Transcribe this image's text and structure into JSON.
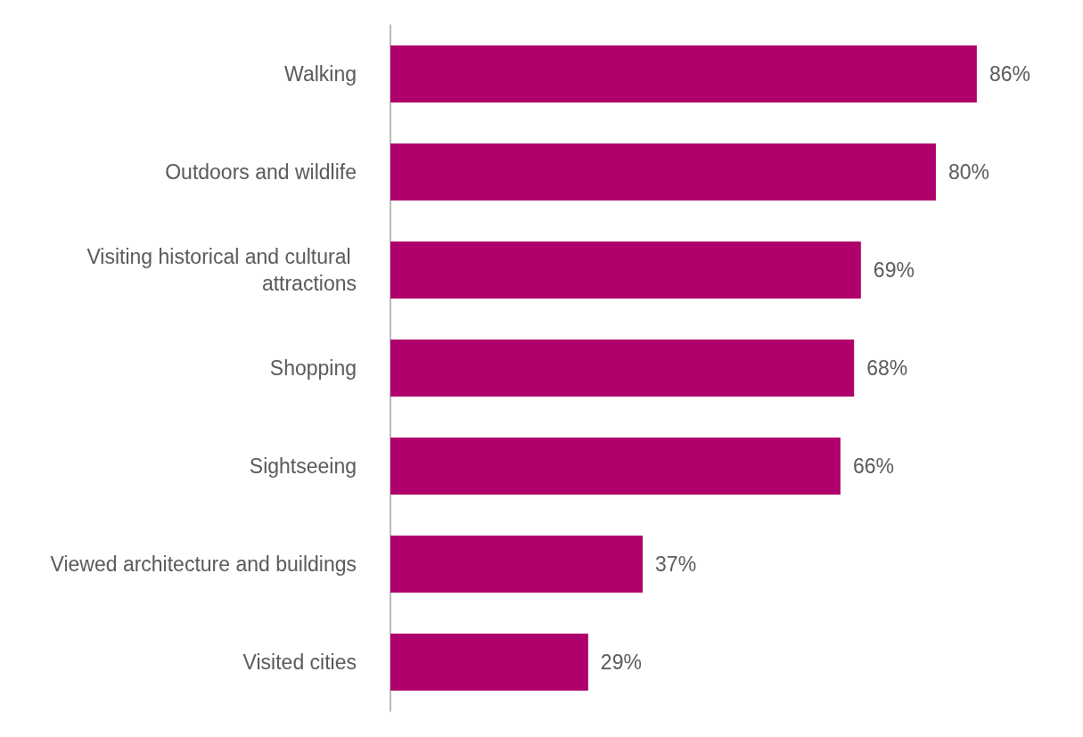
{
  "chart_data": {
    "type": "bar",
    "orientation": "horizontal",
    "categories": [
      "Walking",
      "Outdoors and wildlife",
      "Visiting historical and cultural attractions",
      "Shopping",
      "Sightseeing",
      "Viewed architecture and buildings",
      "Visited cities"
    ],
    "values": [
      86,
      80,
      69,
      68,
      66,
      37,
      29
    ],
    "value_labels": [
      "86%",
      "80%",
      "69%",
      "68%",
      "66%",
      "37%",
      "29%"
    ],
    "color": "#b0006b",
    "tick_labels": "y",
    "grid": false
  }
}
